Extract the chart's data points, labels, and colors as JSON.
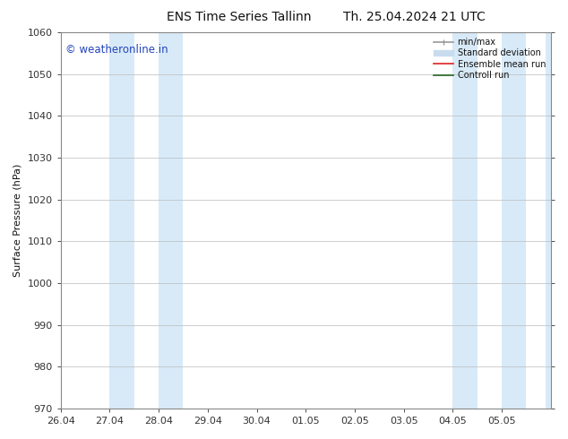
{
  "title_left": "ENS Time Series Tallinn",
  "title_right": "Th. 25.04.2024 21 UTC",
  "ylabel": "Surface Pressure (hPa)",
  "ylim": [
    970,
    1060
  ],
  "yticks": [
    970,
    980,
    990,
    1000,
    1010,
    1020,
    1030,
    1040,
    1050,
    1060
  ],
  "xlim_start": 0,
  "xlim_end": 10,
  "xtick_labels": [
    "26.04",
    "27.04",
    "28.04",
    "29.04",
    "30.04",
    "01.05",
    "02.05",
    "03.05",
    "04.05",
    "05.05"
  ],
  "xtick_positions": [
    0,
    1,
    2,
    3,
    4,
    5,
    6,
    7,
    8,
    9
  ],
  "shaded_bands": [
    {
      "x_start": 1.0,
      "x_end": 1.5,
      "color": "#d8eaf8"
    },
    {
      "x_start": 2.0,
      "x_end": 2.5,
      "color": "#d8eaf8"
    },
    {
      "x_start": 8.0,
      "x_end": 8.5,
      "color": "#d8eaf8"
    },
    {
      "x_start": 9.0,
      "x_end": 9.5,
      "color": "#d8eaf8"
    },
    {
      "x_start": 9.9,
      "x_end": 10.0,
      "color": "#d8eaf8"
    }
  ],
  "watermark_text": "© weatheronline.in",
  "watermark_color": "#2244bb",
  "background_color": "#ffffff",
  "plot_bg_color": "#ffffff",
  "legend_entries": [
    {
      "label": "min/max",
      "color": "#999999",
      "lw": 1.2
    },
    {
      "label": "Standard deviation",
      "color": "#c8dcee",
      "lw": 7
    },
    {
      "label": "Ensemble mean run",
      "color": "#dd2222",
      "lw": 1.2
    },
    {
      "label": "Controll run",
      "color": "#226622",
      "lw": 1.2
    }
  ],
  "grid_color": "#bbbbbb",
  "spine_color": "#888888",
  "tick_color": "#333333",
  "font_color": "#111111",
  "title_fontsize": 10,
  "label_fontsize": 8,
  "tick_fontsize": 8
}
